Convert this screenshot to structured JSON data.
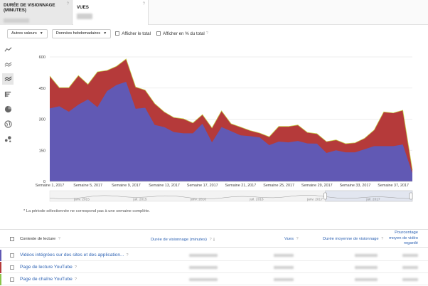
{
  "metric_tabs": [
    {
      "label": "DURÉE DE VISIONNAGE (MINUTES)",
      "help": "?"
    },
    {
      "label": "VUES",
      "help": "?"
    }
  ],
  "toolbar": {
    "compare_dropdown": "Autres valeurs",
    "period_dropdown": "Données hebdomadaires",
    "show_total": "Afficher le total",
    "show_percent": "Afficher en % du total",
    "help": "?"
  },
  "chart_data": {
    "type": "area",
    "x": [
      "Semaine 1, 2017",
      "Semaine 2, 2017",
      "Semaine 3, 2017",
      "Semaine 4, 2017",
      "Semaine 5, 2017",
      "Semaine 6, 2017",
      "Semaine 7, 2017",
      "Semaine 8, 2017",
      "Semaine 9, 2017",
      "Semaine 10, 2017",
      "Semaine 11, 2017",
      "Semaine 12, 2017",
      "Semaine 13, 2017",
      "Semaine 14, 2017",
      "Semaine 15, 2017",
      "Semaine 16, 2017",
      "Semaine 17, 2017",
      "Semaine 18, 2017",
      "Semaine 19, 2017",
      "Semaine 20, 2017",
      "Semaine 21, 2017",
      "Semaine 22, 2017",
      "Semaine 23, 2017",
      "Semaine 24, 2017",
      "Semaine 25, 2017",
      "Semaine 26, 2017",
      "Semaine 27, 2017",
      "Semaine 28, 2017",
      "Semaine 29, 2017",
      "Semaine 30, 2017",
      "Semaine 31, 2017",
      "Semaine 32, 2017",
      "Semaine 33, 2017",
      "Semaine 34, 2017",
      "Semaine 35, 2017",
      "Semaine 36, 2017",
      "Semaine 37, 2017",
      "Semaine 38, 2017",
      "Semaine 39, 2017"
    ],
    "tick_labels": [
      "Semaine 1, 2017",
      "Semaine 5, 2017",
      "Semaine 9, 2017",
      "Semaine 13, 2017",
      "Semaine 17, 2017",
      "Semaine 21, 2017",
      "Semaine 25, 2017",
      "Semaine 29, 2017",
      "Semaine 33, 2017",
      "Semaine 37, 2017"
    ],
    "y_ticks": [
      0,
      150,
      300,
      450,
      600
    ],
    "ylim": [
      0,
      600
    ],
    "series": [
      {
        "color": "#6159b4",
        "values": [
          352,
          362,
          336,
          370,
          395,
          358,
          435,
          465,
          480,
          350,
          355,
          272,
          262,
          238,
          232,
          232,
          278,
          188,
          262,
          242,
          222,
          218,
          212,
          175,
          192,
          188,
          195,
          183,
          182,
          137,
          150,
          140,
          140,
          155,
          170,
          170,
          170,
          178,
          40
        ]
      },
      {
        "color": "#b53a3a",
        "values": [
          508,
          452,
          452,
          510,
          468,
          528,
          535,
          555,
          590,
          455,
          440,
          375,
          335,
          308,
          302,
          282,
          322,
          258,
          340,
          278,
          262,
          245,
          233,
          215,
          265,
          265,
          272,
          236,
          230,
          192,
          200,
          182,
          186,
          208,
          248,
          335,
          330,
          343,
          55
        ]
      }
    ],
    "navigator": {
      "labels": [
        "janv. 2015",
        "juil. 2015",
        "janv. 2016",
        "juil. 2016",
        "janv. 2017",
        "juil. 2017"
      ]
    }
  },
  "footnote": "* La période sélectionnée ne correspond pas à une semaine complète.",
  "table": {
    "headers": {
      "context": "Contexte de lecture",
      "watch_time": "Durée de visionnage (minutes)",
      "sort_arrow": "↓",
      "views": "Vues",
      "avg_duration": "Durée moyenne de visionnage",
      "avg_percent": "Pourcentage moyen de vidéo regardé",
      "help": "?"
    },
    "rows": [
      {
        "label": "Vidéos intégrées sur des sites et des application...",
        "help": "?",
        "color": "#6159b4"
      },
      {
        "label": "Page de lecture YouTube",
        "help": "?",
        "color": "#b53a3a"
      },
      {
        "label": "Page de chaîne YouTube",
        "help": "?",
        "color": "#8bc34a"
      }
    ]
  }
}
